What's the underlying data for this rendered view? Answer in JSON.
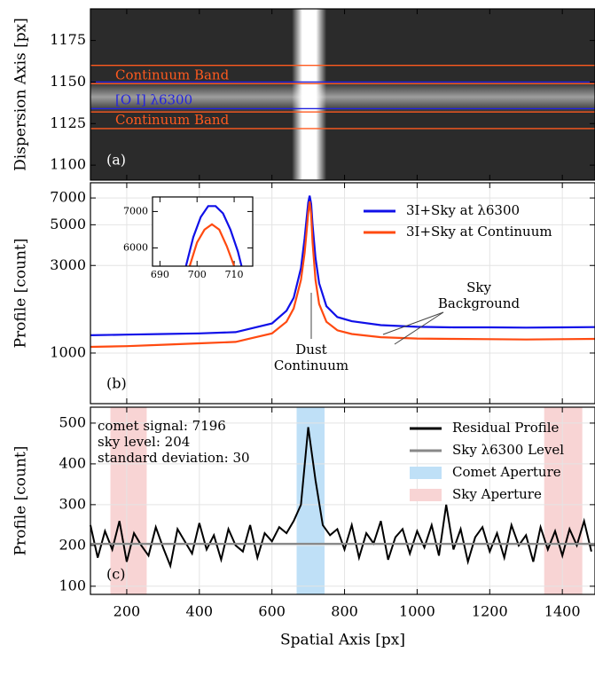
{
  "chart_data": [
    {
      "type": "image",
      "ylabel": "Dispersion Axis [px]",
      "panel_label": "(a)",
      "xlim": [
        100,
        1490
      ],
      "ylim": [
        1091,
        1194
      ],
      "yticks": [
        1100,
        1125,
        1150,
        1175
      ],
      "bands": [
        {
          "name": "Continuum Band",
          "color": "#ff5a1f",
          "values": [
            1149,
            1160
          ]
        },
        {
          "name": "[O I] λ6300",
          "color": "#2323e0",
          "values": [
            1134,
            1150
          ]
        },
        {
          "name": "Continuum Band",
          "color": "#ff5a1f",
          "values": [
            1122,
            1132
          ]
        }
      ]
    },
    {
      "type": "line",
      "ylabel": "Profile [count]",
      "panel_label": "(b)",
      "log_scale": true,
      "grid": true,
      "legend": "upper right",
      "xlim": [
        100,
        1490
      ],
      "ylim": [
        530,
        8470
      ],
      "yticks": [
        1000,
        3000,
        5000,
        7000
      ],
      "x": [
        100,
        200,
        300,
        400,
        500,
        600,
        640,
        660,
        680,
        690,
        695,
        700,
        704,
        708,
        712,
        720,
        730,
        750,
        780,
        820,
        900,
        1000,
        1100,
        1200,
        1300,
        1400,
        1490
      ],
      "series": [
        {
          "name": "3I+Sky at λ6300",
          "color": "#1010e8",
          "values": [
            1250,
            1260,
            1270,
            1280,
            1300,
            1450,
            1700,
            2000,
            2900,
            4200,
            5300,
            6600,
            7196,
            6500,
            5000,
            3300,
            2400,
            1800,
            1570,
            1490,
            1420,
            1390,
            1380,
            1380,
            1375,
            1380,
            1385
          ]
        },
        {
          "name": "3I+Sky at Continuum",
          "color": "#ff4a10",
          "values": [
            1080,
            1090,
            1110,
            1130,
            1150,
            1280,
            1480,
            1750,
            2500,
            3500,
            4500,
            5800,
            6700,
            5700,
            4000,
            2500,
            1850,
            1480,
            1330,
            1270,
            1220,
            1200,
            1195,
            1190,
            1185,
            1190,
            1195
          ]
        }
      ],
      "annotations": [
        {
          "lines": [
            "Sky",
            "Background"
          ]
        },
        {
          "lines": [
            "Dust",
            "Continuum"
          ]
        }
      ]
    },
    {
      "type": "line",
      "xlim": [
        688,
        715
      ],
      "ylim": [
        5500,
        7400
      ],
      "xticks": [
        690,
        700,
        710
      ],
      "yticks": [
        6000,
        7000
      ],
      "series": [
        {
          "color": "#1010e8",
          "x": [
            697,
            699,
            701,
            703,
            705,
            707,
            709,
            711,
            712
          ],
          "values": [
            5500,
            6300,
            6850,
            7150,
            7150,
            6950,
            6500,
            5900,
            5500
          ]
        },
        {
          "color": "#ff4a10",
          "x": [
            698,
            700,
            702,
            704,
            706,
            708,
            710
          ],
          "values": [
            5500,
            6150,
            6500,
            6650,
            6500,
            6050,
            5500
          ]
        }
      ]
    },
    {
      "type": "line",
      "ylabel": "Profile [count]",
      "xlabel": "Spatial Axis [px]",
      "panel_label": "(c)",
      "grid": true,
      "legend": "upper right",
      "xlim": [
        100,
        1490
      ],
      "ylim": [
        80,
        539
      ],
      "yticks": [
        100,
        200,
        300,
        400,
        500
      ],
      "xticks": [
        200,
        400,
        600,
        800,
        1000,
        1200,
        1400
      ],
      "x": [
        100,
        120,
        140,
        160,
        180,
        200,
        220,
        240,
        260,
        280,
        300,
        320,
        340,
        360,
        380,
        400,
        420,
        440,
        460,
        480,
        500,
        520,
        540,
        560,
        580,
        600,
        620,
        640,
        660,
        680,
        700,
        720,
        740,
        760,
        780,
        800,
        820,
        840,
        860,
        880,
        900,
        920,
        940,
        960,
        980,
        1000,
        1020,
        1040,
        1060,
        1080,
        1100,
        1120,
        1140,
        1160,
        1180,
        1200,
        1220,
        1240,
        1260,
        1280,
        1300,
        1320,
        1340,
        1360,
        1380,
        1400,
        1420,
        1440,
        1460,
        1480
      ],
      "series": [
        {
          "name": "Residual Profile",
          "color": "#000000",
          "values": [
            250,
            170,
            235,
            190,
            260,
            160,
            230,
            200,
            175,
            245,
            195,
            150,
            240,
            210,
            180,
            255,
            190,
            225,
            165,
            240,
            200,
            185,
            250,
            170,
            230,
            210,
            245,
            230,
            260,
            300,
            490,
            360,
            250,
            225,
            240,
            190,
            250,
            170,
            230,
            205,
            260,
            165,
            220,
            240,
            180,
            235,
            195,
            250,
            175,
            300,
            190,
            240,
            160,
            220,
            245,
            185,
            230,
            170,
            250,
            200,
            225,
            160,
            245,
            190,
            235,
            175,
            240,
            200,
            260,
            185
          ]
        },
        {
          "name": "Sky λ6300 Level",
          "color": "#888888",
          "x": [
            100,
            1490
          ],
          "values": [
            204,
            204
          ]
        }
      ],
      "spans": [
        {
          "name": "Comet Aperture",
          "color": "#bfe0f7",
          "values": [
            668,
            745
          ]
        },
        {
          "name": "Sky Aperture",
          "color": "#f8d4d4",
          "values": [
            155,
            255
          ]
        },
        {
          "color": "#f8d4d4",
          "values": [
            1350,
            1455
          ]
        }
      ],
      "stats": [
        "comet signal: 7196",
        "sky level: 204",
        "standard deviation: 30"
      ]
    }
  ]
}
